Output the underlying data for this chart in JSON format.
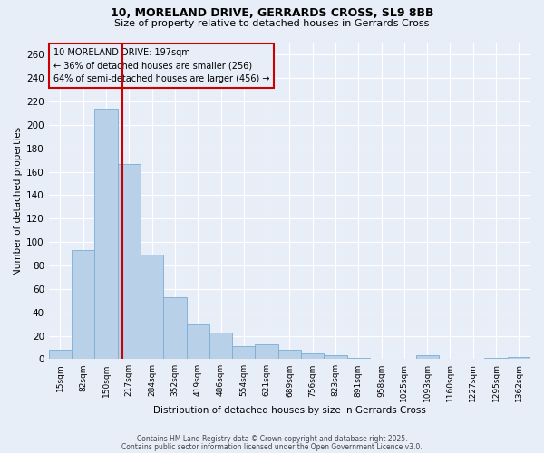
{
  "title1": "10, MORELAND DRIVE, GERRARDS CROSS, SL9 8BB",
  "title2": "Size of property relative to detached houses in Gerrards Cross",
  "xlabel": "Distribution of detached houses by size in Gerrards Cross",
  "ylabel": "Number of detached properties",
  "categories": [
    "15sqm",
    "82sqm",
    "150sqm",
    "217sqm",
    "284sqm",
    "352sqm",
    "419sqm",
    "486sqm",
    "554sqm",
    "621sqm",
    "689sqm",
    "756sqm",
    "823sqm",
    "891sqm",
    "958sqm",
    "1025sqm",
    "1093sqm",
    "1160sqm",
    "1227sqm",
    "1295sqm",
    "1362sqm"
  ],
  "values": [
    8,
    93,
    214,
    167,
    89,
    53,
    30,
    23,
    11,
    13,
    8,
    5,
    3,
    1,
    0,
    0,
    3,
    0,
    0,
    1,
    2
  ],
  "bar_color": "#b8d0e8",
  "bar_edgecolor": "#7aadd4",
  "marker_color": "#cc0000",
  "annotation_box_edgecolor": "#cc0000",
  "ylim": [
    0,
    270
  ],
  "yticks": [
    0,
    20,
    40,
    60,
    80,
    100,
    120,
    140,
    160,
    180,
    200,
    220,
    240,
    260
  ],
  "background_color": "#e8eef8",
  "grid_color": "#ffffff",
  "marker_label": "10 MORELAND DRIVE: 197sqm",
  "marker_line1": "10 MORELAND DRIVE: 197sqm",
  "marker_line2": "← 36% of detached houses are smaller (256)",
  "marker_line3": "64% of semi-detached houses are larger (456) →",
  "footer1": "Contains HM Land Registry data © Crown copyright and database right 2025.",
  "footer2": "Contains public sector information licensed under the Open Government Licence v3.0.",
  "title1_fontsize": 9,
  "title2_fontsize": 8
}
